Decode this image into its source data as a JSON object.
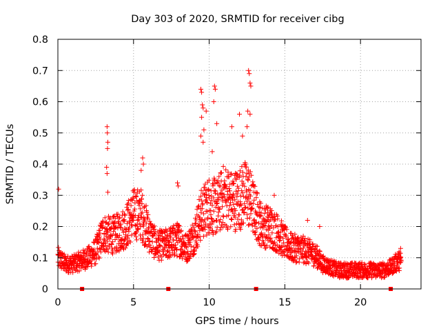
{
  "chart_data": {
    "type": "scatter",
    "title": "Day 303 of 2020, SRMTID for receiver cibg",
    "xlabel": "GPS time / hours",
    "ylabel": "SRMTID / TECUs",
    "xlim": [
      0,
      24
    ],
    "ylim": [
      0,
      0.8
    ],
    "x_ticks": [
      0,
      5,
      10,
      15,
      20
    ],
    "x_tick_labels": [
      "0",
      "5",
      "10",
      "15",
      "20"
    ],
    "y_ticks": [
      0,
      0.1,
      0.2,
      0.3,
      0.4,
      0.5,
      0.6,
      0.7,
      0.8
    ],
    "y_tick_labels": [
      "0",
      "0.1",
      "0.2",
      "0.3",
      "0.4",
      "0.5",
      "0.6",
      "0.7",
      "0.8"
    ],
    "grid": true,
    "marker": "+",
    "colors": {
      "series": "#ff0000",
      "axis": "#000000",
      "grid": "#a0a0a0"
    },
    "series": [
      {
        "name": "SRMTID",
        "trend": {
          "x": [
            0,
            0.5,
            1,
            1.5,
            2,
            2.5,
            3,
            3.5,
            4,
            4.5,
            5,
            5.5,
            6,
            6.5,
            7,
            7.5,
            8,
            8.5,
            9,
            9.5,
            10,
            10.5,
            11,
            11.5,
            12,
            12.5,
            13,
            13.5,
            14,
            14.5,
            15,
            15.5,
            16,
            16.5,
            17,
            17.5,
            18,
            18.5,
            19,
            19.5,
            20,
            20.5,
            21,
            21.5,
            22,
            22.5
          ],
          "y": [
            0.1,
            0.08,
            0.08,
            0.09,
            0.1,
            0.12,
            0.18,
            0.17,
            0.18,
            0.2,
            0.24,
            0.24,
            0.18,
            0.14,
            0.14,
            0.15,
            0.16,
            0.13,
            0.17,
            0.24,
            0.27,
            0.26,
            0.3,
            0.28,
            0.29,
            0.31,
            0.25,
            0.2,
            0.2,
            0.18,
            0.15,
            0.13,
            0.13,
            0.12,
            0.11,
            0.08,
            0.07,
            0.06,
            0.06,
            0.06,
            0.06,
            0.06,
            0.06,
            0.06,
            0.07,
            0.09
          ]
        },
        "highlights": [
          {
            "x": 0.05,
            "y": 0.32
          },
          {
            "x": 3.25,
            "y": 0.52
          },
          {
            "x": 3.27,
            "y": 0.5
          },
          {
            "x": 3.3,
            "y": 0.47
          },
          {
            "x": 3.28,
            "y": 0.45
          },
          {
            "x": 3.22,
            "y": 0.39
          },
          {
            "x": 3.25,
            "y": 0.37
          },
          {
            "x": 3.3,
            "y": 0.31
          },
          {
            "x": 5.6,
            "y": 0.42
          },
          {
            "x": 5.65,
            "y": 0.4
          },
          {
            "x": 5.5,
            "y": 0.38
          },
          {
            "x": 7.9,
            "y": 0.34
          },
          {
            "x": 7.95,
            "y": 0.33
          },
          {
            "x": 9.45,
            "y": 0.64
          },
          {
            "x": 9.5,
            "y": 0.63
          },
          {
            "x": 9.55,
            "y": 0.59
          },
          {
            "x": 9.6,
            "y": 0.58
          },
          {
            "x": 9.5,
            "y": 0.55
          },
          {
            "x": 9.65,
            "y": 0.51
          },
          {
            "x": 9.45,
            "y": 0.49
          },
          {
            "x": 9.6,
            "y": 0.47
          },
          {
            "x": 9.8,
            "y": 0.57
          },
          {
            "x": 10.35,
            "y": 0.65
          },
          {
            "x": 10.4,
            "y": 0.64
          },
          {
            "x": 10.3,
            "y": 0.6
          },
          {
            "x": 10.5,
            "y": 0.53
          },
          {
            "x": 10.2,
            "y": 0.44
          },
          {
            "x": 11.5,
            "y": 0.52
          },
          {
            "x": 12.0,
            "y": 0.56
          },
          {
            "x": 12.2,
            "y": 0.49
          },
          {
            "x": 12.6,
            "y": 0.7
          },
          {
            "x": 12.65,
            "y": 0.69
          },
          {
            "x": 12.7,
            "y": 0.66
          },
          {
            "x": 12.75,
            "y": 0.65
          },
          {
            "x": 12.55,
            "y": 0.57
          },
          {
            "x": 12.7,
            "y": 0.56
          },
          {
            "x": 12.5,
            "y": 0.52
          },
          {
            "x": 14.3,
            "y": 0.3
          },
          {
            "x": 16.5,
            "y": 0.22
          },
          {
            "x": 17.3,
            "y": 0.2
          },
          {
            "x": 22.65,
            "y": 0.13
          }
        ]
      }
    ],
    "gap_markers": {
      "x": [
        1.6,
        7.3,
        13.1,
        22.0
      ],
      "y": 0
    }
  }
}
